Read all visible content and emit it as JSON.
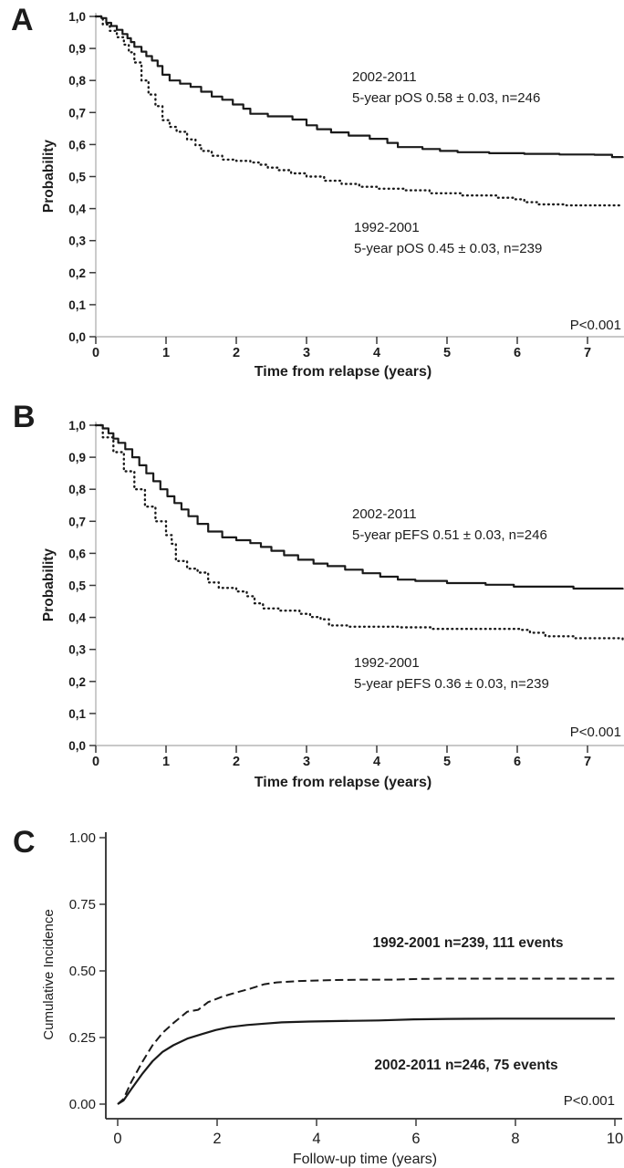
{
  "figure": {
    "background": "#ffffff",
    "panel_letter_color": "#17698f",
    "curve_color": "#1a1a1a",
    "axis_color_ab": "#b5b5b5",
    "axis_color_c": "#2b2b2b",
    "tick_color": "#3a3a3a"
  },
  "chart_data": [
    {
      "panel_label": "A",
      "type": "line",
      "subtype": "kaplan-meier",
      "xlabel": "Time from relapse (years)",
      "ylabel": "Probability",
      "xlim": [
        0,
        7.5
      ],
      "ylim": [
        0,
        1
      ],
      "grid": false,
      "legend_position": "inline-annotations",
      "xticks": [
        0,
        1,
        2,
        3,
        4,
        5,
        6,
        7
      ],
      "yticks": [
        {
          "v": 0.0,
          "label": "0,0"
        },
        {
          "v": 0.1,
          "label": "0,1"
        },
        {
          "v": 0.2,
          "label": "0,2"
        },
        {
          "v": 0.3,
          "label": "0,3"
        },
        {
          "v": 0.4,
          "label": "0,4"
        },
        {
          "v": 0.5,
          "label": "0,5"
        },
        {
          "v": 0.6,
          "label": "0,6"
        },
        {
          "v": 0.7,
          "label": "0,7"
        },
        {
          "v": 0.8,
          "label": "0,8"
        },
        {
          "v": 0.9,
          "label": "0,9"
        },
        {
          "v": 1.0,
          "label": "1,0"
        }
      ],
      "p_value": "P<0.001",
      "series": [
        {
          "name": "2002-2011",
          "style": "solid",
          "step": true,
          "annotation": [
            "2002-2011",
            "5-year pOS 0.58 ± 0.03, n=246"
          ],
          "points": [
            [
              0,
              1
            ],
            [
              0.08,
              0.995
            ],
            [
              0.15,
              0.98
            ],
            [
              0.22,
              0.97
            ],
            [
              0.3,
              0.958
            ],
            [
              0.38,
              0.945
            ],
            [
              0.45,
              0.932
            ],
            [
              0.5,
              0.92
            ],
            [
              0.55,
              0.905
            ],
            [
              0.65,
              0.89
            ],
            [
              0.72,
              0.876
            ],
            [
              0.8,
              0.862
            ],
            [
              0.88,
              0.845
            ],
            [
              0.95,
              0.818
            ],
            [
              1.05,
              0.8
            ],
            [
              1.2,
              0.79
            ],
            [
              1.35,
              0.78
            ],
            [
              1.5,
              0.765
            ],
            [
              1.65,
              0.75
            ],
            [
              1.8,
              0.74
            ],
            [
              1.95,
              0.725
            ],
            [
              2.1,
              0.712
            ],
            [
              2.2,
              0.696
            ],
            [
              2.45,
              0.688
            ],
            [
              2.8,
              0.678
            ],
            [
              3.0,
              0.66
            ],
            [
              3.15,
              0.648
            ],
            [
              3.35,
              0.638
            ],
            [
              3.6,
              0.628
            ],
            [
              3.9,
              0.618
            ],
            [
              4.15,
              0.605
            ],
            [
              4.3,
              0.592
            ],
            [
              4.65,
              0.586
            ],
            [
              4.9,
              0.58
            ],
            [
              5.15,
              0.576
            ],
            [
              5.6,
              0.573
            ],
            [
              6.1,
              0.571
            ],
            [
              6.6,
              0.569
            ],
            [
              7.1,
              0.568
            ],
            [
              7.35,
              0.561
            ],
            [
              7.5,
              0.558
            ]
          ]
        },
        {
          "name": "1992-2001",
          "style": "dotted",
          "step": true,
          "annotation": [
            "1992-2001",
            "5-year pOS 0.45 ± 0.03, n=239"
          ],
          "points": [
            [
              0,
              1
            ],
            [
              0.1,
              0.975
            ],
            [
              0.2,
              0.955
            ],
            [
              0.3,
              0.935
            ],
            [
              0.4,
              0.912
            ],
            [
              0.47,
              0.888
            ],
            [
              0.55,
              0.856
            ],
            [
              0.65,
              0.8
            ],
            [
              0.75,
              0.756
            ],
            [
              0.85,
              0.72
            ],
            [
              0.95,
              0.676
            ],
            [
              1.05,
              0.655
            ],
            [
              1.15,
              0.64
            ],
            [
              1.3,
              0.616
            ],
            [
              1.42,
              0.598
            ],
            [
              1.5,
              0.58
            ],
            [
              1.65,
              0.565
            ],
            [
              1.8,
              0.553
            ],
            [
              2.0,
              0.549
            ],
            [
              2.2,
              0.544
            ],
            [
              2.32,
              0.537
            ],
            [
              2.45,
              0.528
            ],
            [
              2.6,
              0.52
            ],
            [
              2.78,
              0.51
            ],
            [
              3.0,
              0.5
            ],
            [
              3.25,
              0.487
            ],
            [
              3.5,
              0.477
            ],
            [
              3.75,
              0.468
            ],
            [
              4.0,
              0.462
            ],
            [
              4.4,
              0.457
            ],
            [
              4.75,
              0.448
            ],
            [
              5.2,
              0.441
            ],
            [
              5.7,
              0.434
            ],
            [
              5.95,
              0.429
            ],
            [
              6.1,
              0.42
            ],
            [
              6.3,
              0.413
            ],
            [
              6.7,
              0.41
            ],
            [
              7.5,
              0.409
            ]
          ]
        }
      ]
    },
    {
      "panel_label": "B",
      "type": "line",
      "subtype": "kaplan-meier",
      "xlabel": "Time from relapse (years)",
      "ylabel": "Probability",
      "xlim": [
        0,
        7.5
      ],
      "ylim": [
        0,
        1
      ],
      "grid": false,
      "legend_position": "inline-annotations",
      "xticks": [
        0,
        1,
        2,
        3,
        4,
        5,
        6,
        7
      ],
      "yticks": [
        {
          "v": 0.0,
          "label": "0,0"
        },
        {
          "v": 0.1,
          "label": "0,1"
        },
        {
          "v": 0.2,
          "label": "0,2"
        },
        {
          "v": 0.3,
          "label": "0,3"
        },
        {
          "v": 0.4,
          "label": "0,4"
        },
        {
          "v": 0.5,
          "label": "0,5"
        },
        {
          "v": 0.6,
          "label": "0,6"
        },
        {
          "v": 0.7,
          "label": "0,7"
        },
        {
          "v": 0.8,
          "label": "0,8"
        },
        {
          "v": 0.9,
          "label": "0,9"
        },
        {
          "v": 1.0,
          "label": "1,0"
        }
      ],
      "p_value": "P<0.001",
      "series": [
        {
          "name": "2002-2011",
          "style": "solid",
          "step": true,
          "annotation": [
            "2002-2011",
            "5-year pEFS 0.51 ± 0.03, n=246"
          ],
          "points": [
            [
              0,
              1
            ],
            [
              0.1,
              0.99
            ],
            [
              0.18,
              0.975
            ],
            [
              0.25,
              0.958
            ],
            [
              0.32,
              0.945
            ],
            [
              0.42,
              0.925
            ],
            [
              0.52,
              0.9
            ],
            [
              0.62,
              0.875
            ],
            [
              0.72,
              0.85
            ],
            [
              0.82,
              0.825
            ],
            [
              0.92,
              0.8
            ],
            [
              1.02,
              0.778
            ],
            [
              1.12,
              0.757
            ],
            [
              1.22,
              0.737
            ],
            [
              1.32,
              0.716
            ],
            [
              1.45,
              0.692
            ],
            [
              1.6,
              0.668
            ],
            [
              1.8,
              0.65
            ],
            [
              2.0,
              0.641
            ],
            [
              2.2,
              0.632
            ],
            [
              2.35,
              0.62
            ],
            [
              2.5,
              0.608
            ],
            [
              2.68,
              0.594
            ],
            [
              2.88,
              0.58
            ],
            [
              3.1,
              0.568
            ],
            [
              3.3,
              0.56
            ],
            [
              3.55,
              0.549
            ],
            [
              3.8,
              0.538
            ],
            [
              4.05,
              0.527
            ],
            [
              4.3,
              0.518
            ],
            [
              4.55,
              0.514
            ],
            [
              5.0,
              0.507
            ],
            [
              5.55,
              0.502
            ],
            [
              5.95,
              0.496
            ],
            [
              6.8,
              0.49
            ],
            [
              7.5,
              0.487
            ]
          ]
        },
        {
          "name": "1992-2001",
          "style": "dotted",
          "step": true,
          "annotation": [
            "1992-2001",
            "5-year pEFS 0.36 ± 0.03, n=239"
          ],
          "points": [
            [
              0,
              1
            ],
            [
              0.1,
              0.962
            ],
            [
              0.25,
              0.916
            ],
            [
              0.4,
              0.856
            ],
            [
              0.55,
              0.8
            ],
            [
              0.7,
              0.746
            ],
            [
              0.85,
              0.7
            ],
            [
              1.0,
              0.657
            ],
            [
              1.08,
              0.63
            ],
            [
              1.14,
              0.576
            ],
            [
              1.3,
              0.552
            ],
            [
              1.45,
              0.54
            ],
            [
              1.6,
              0.509
            ],
            [
              1.75,
              0.492
            ],
            [
              2.0,
              0.481
            ],
            [
              2.15,
              0.466
            ],
            [
              2.26,
              0.444
            ],
            [
              2.38,
              0.428
            ],
            [
              2.6,
              0.421
            ],
            [
              2.9,
              0.411
            ],
            [
              3.05,
              0.401
            ],
            [
              3.2,
              0.394
            ],
            [
              3.32,
              0.375
            ],
            [
              3.6,
              0.371
            ],
            [
              4.3,
              0.369
            ],
            [
              4.8,
              0.364
            ],
            [
              6.05,
              0.361
            ],
            [
              6.18,
              0.352
            ],
            [
              6.4,
              0.341
            ],
            [
              6.8,
              0.335
            ],
            [
              7.5,
              0.331
            ]
          ]
        }
      ]
    },
    {
      "panel_label": "C",
      "type": "line",
      "subtype": "cumulative-incidence",
      "xlabel": "Follow-up time (years)",
      "ylabel": "Cumulative Incidence",
      "xlim": [
        0,
        10
      ],
      "ylim": [
        0,
        1
      ],
      "grid": false,
      "legend_position": "inline-annotations",
      "xticks": [
        0,
        2,
        4,
        6,
        8,
        10
      ],
      "yticks": [
        {
          "v": 0.0,
          "label": "0.00"
        },
        {
          "v": 0.25,
          "label": "0.25"
        },
        {
          "v": 0.5,
          "label": "0.50"
        },
        {
          "v": 0.75,
          "label": "0.75"
        },
        {
          "v": 1.0,
          "label": "1.00"
        }
      ],
      "p_value": "P<0.001",
      "series": [
        {
          "name": "1992-2001",
          "style": "dashed",
          "step": false,
          "annotation": [
            "1992-2001 n=239, 111 events"
          ],
          "points": [
            [
              0,
              0
            ],
            [
              0.12,
              0.02
            ],
            [
              0.27,
              0.082
            ],
            [
              0.5,
              0.16
            ],
            [
              0.7,
              0.221
            ],
            [
              0.9,
              0.267
            ],
            [
              1.12,
              0.304
            ],
            [
              1.4,
              0.347
            ],
            [
              1.62,
              0.354
            ],
            [
              1.82,
              0.383
            ],
            [
              2.1,
              0.403
            ],
            [
              2.4,
              0.42
            ],
            [
              2.66,
              0.433
            ],
            [
              2.95,
              0.45
            ],
            [
              3.2,
              0.457
            ],
            [
              3.65,
              0.462
            ],
            [
              4.2,
              0.465
            ],
            [
              4.9,
              0.467
            ],
            [
              5.55,
              0.467
            ],
            [
              6.1,
              0.47
            ],
            [
              6.6,
              0.471
            ],
            [
              10,
              0.471
            ]
          ]
        },
        {
          "name": "2002-2011",
          "style": "solid",
          "step": false,
          "annotation": [
            "2002-2011 n=246, 75 events"
          ],
          "points": [
            [
              0,
              0
            ],
            [
              0.12,
              0.014
            ],
            [
              0.27,
              0.055
            ],
            [
              0.5,
              0.115
            ],
            [
              0.7,
              0.161
            ],
            [
              0.9,
              0.196
            ],
            [
              1.12,
              0.221
            ],
            [
              1.4,
              0.246
            ],
            [
              1.7,
              0.263
            ],
            [
              1.97,
              0.278
            ],
            [
              2.25,
              0.289
            ],
            [
              2.6,
              0.297
            ],
            [
              2.95,
              0.302
            ],
            [
              3.3,
              0.307
            ],
            [
              3.85,
              0.31
            ],
            [
              4.5,
              0.312
            ],
            [
              5.25,
              0.314
            ],
            [
              5.95,
              0.318
            ],
            [
              6.65,
              0.32
            ],
            [
              7.7,
              0.321
            ],
            [
              10,
              0.321
            ]
          ]
        }
      ]
    }
  ]
}
